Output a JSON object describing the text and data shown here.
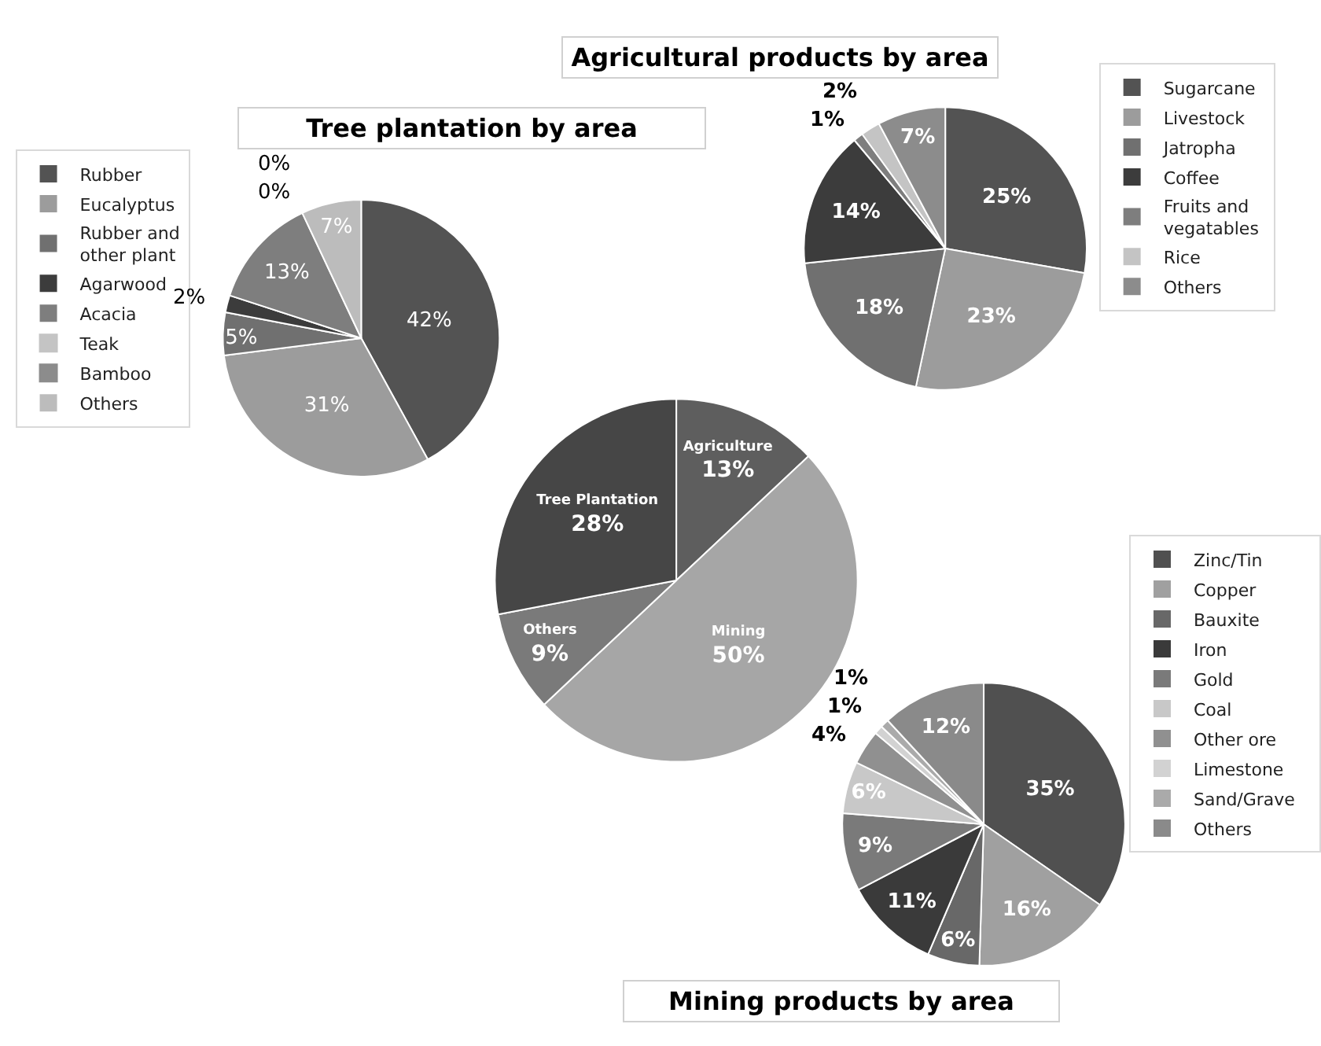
{
  "chart_data": [
    {
      "type": "pie",
      "title": "Tree plantation by area",
      "legend": "left",
      "categories": [
        "Rubber",
        "Eucalyptus",
        "Rubber and other plant",
        "Agarwood",
        "Acacia",
        "Teak",
        "Bamboo",
        "Others"
      ],
      "values": [
        42,
        31,
        5,
        2,
        13,
        0,
        0,
        7
      ],
      "value_labels": [
        "42%",
        "31%",
        "5%",
        "2%",
        "13%",
        "0%",
        "0%",
        "7%"
      ],
      "colors": [
        "#535353",
        "#9c9c9c",
        "#707070",
        "#3c3c3c",
        "#7e7e7e",
        "#c4c4c4",
        "#8c8c8c",
        "#bcbcbc"
      ]
    },
    {
      "type": "pie",
      "title": "Agricultural products by area",
      "legend": "right",
      "categories": [
        "Sugarcane",
        "Livestock",
        "Jatropha",
        "Coffee",
        "Fruits and vegatables",
        "Rice",
        "Others"
      ],
      "values": [
        25,
        23,
        18,
        14,
        1,
        2,
        7
      ],
      "value_labels": [
        "25%",
        "23%",
        "18%",
        "14%",
        "1%",
        "2%",
        "7%"
      ],
      "colors": [
        "#535353",
        "#9c9c9c",
        "#707070",
        "#3c3c3c",
        "#7e7e7e",
        "#c4c4c4",
        "#8c8c8c"
      ]
    },
    {
      "type": "pie",
      "legend": false,
      "categories": [
        "Agriculture",
        "Mining",
        "Others",
        "Tree Plantation"
      ],
      "values": [
        13,
        50,
        9,
        28
      ],
      "value_labels": [
        "13%",
        "50%",
        "9%",
        "28%"
      ],
      "colors": [
        "#5e5e5e",
        "#a6a6a6",
        "#7a7a7a",
        "#464646"
      ]
    },
    {
      "type": "pie",
      "title": "Mining products by area",
      "legend": "right",
      "categories": [
        "Zinc/Tin",
        "Copper",
        "Bauxite",
        "Iron",
        "Gold",
        "Coal",
        "Other ore",
        "Limestone",
        "Sand/Grave",
        "Others"
      ],
      "values": [
        35,
        16,
        6,
        11,
        9,
        6,
        4,
        1,
        1,
        12
      ],
      "value_labels": [
        "35%",
        "16%",
        "6%",
        "11%",
        "9%",
        "6%",
        "4%",
        "1%",
        "1%",
        "12%"
      ],
      "colors": [
        "#505050",
        "#a0a0a0",
        "#686868",
        "#3a3a3a",
        "#7a7a7a",
        "#c8c8c8",
        "#909090",
        "#d2d2d2",
        "#aaaaaa",
        "#8a8a8a"
      ]
    }
  ]
}
